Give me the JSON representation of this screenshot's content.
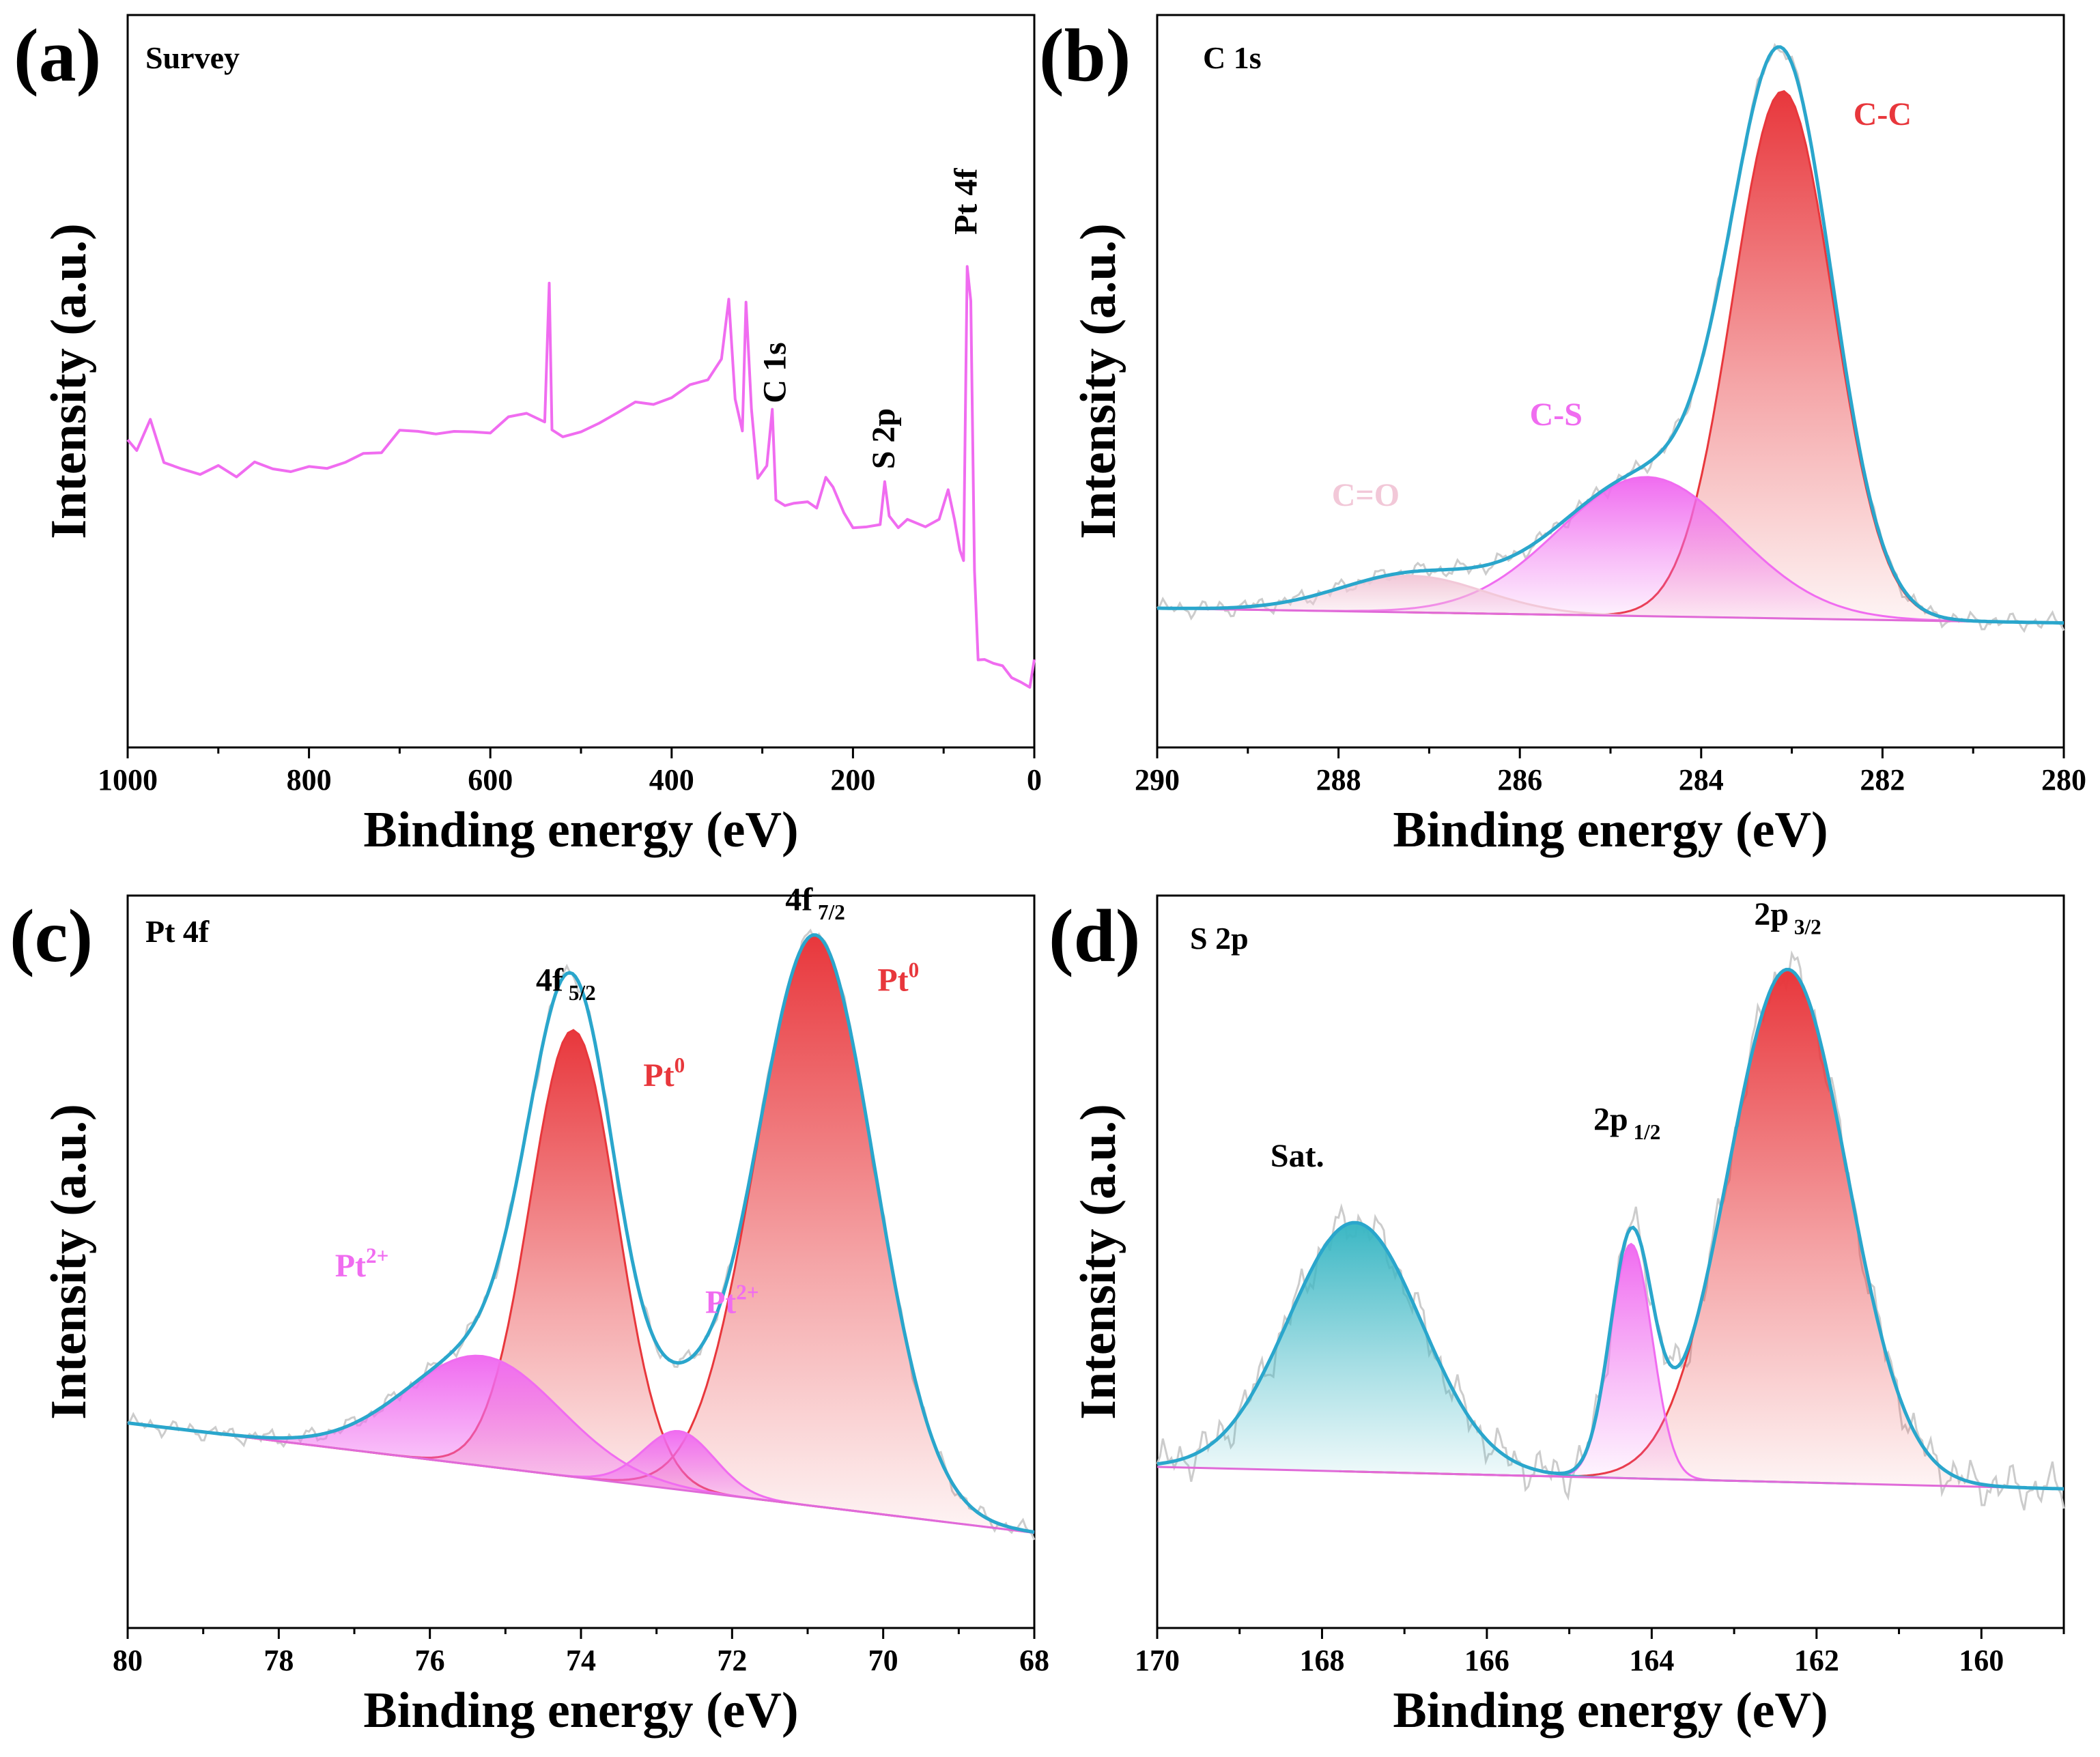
{
  "figure": {
    "xlabel": "Binding energy (eV)",
    "ylabel": "Intensity (a.u.)"
  },
  "colors": {
    "fit": "#2aa6cc",
    "red": "#e8373c",
    "magenta": "#f06cf0",
    "pink": "#f2c8d8",
    "teal": "#3bb7c4",
    "raw": "#cccccc",
    "axis": "#000000"
  },
  "chart_data": [
    {
      "type": "line",
      "panel_label": "(a)",
      "title": "Survey",
      "xlabel": "Binding energy (eV)",
      "ylabel": "Intensity (a.u.)",
      "xlim": [
        1000,
        0
      ],
      "ylim": [
        0,
        100
      ],
      "xticks": [
        "1000",
        "800",
        "600",
        "400",
        "200",
        "0"
      ],
      "tick_values": [
        1000,
        800,
        600,
        400,
        200,
        0
      ],
      "series": [
        {
          "name": "Survey spectrum",
          "color": "#f06cf0",
          "points": [
            [
              1000,
              42
            ],
            [
              990,
              40
            ],
            [
              975,
              43
            ],
            [
              960,
              38
            ],
            [
              940,
              38
            ],
            [
              920,
              37
            ],
            [
              900,
              39
            ],
            [
              880,
              37
            ],
            [
              860,
              38
            ],
            [
              840,
              38
            ],
            [
              820,
              38
            ],
            [
              800,
              39
            ],
            [
              780,
              40
            ],
            [
              760,
              40
            ],
            [
              740,
              40
            ],
            [
              720,
              40
            ],
            [
              700,
              42
            ],
            [
              680,
              42
            ],
            [
              660,
              43
            ],
            [
              640,
              43
            ],
            [
              620,
              43
            ],
            [
              600,
              43
            ],
            [
              580,
              44
            ],
            [
              560,
              45
            ],
            [
              540,
              45
            ],
            [
              535,
              64
            ],
            [
              532,
              45
            ],
            [
              520,
              44
            ],
            [
              500,
              43
            ],
            [
              480,
              44
            ],
            [
              460,
              45
            ],
            [
              440,
              46
            ],
            [
              420,
              47
            ],
            [
              400,
              48
            ],
            [
              380,
              49
            ],
            [
              360,
              50
            ],
            [
              345,
              52
            ],
            [
              337,
              60
            ],
            [
              330,
              48
            ],
            [
              322,
              44
            ],
            [
              318,
              62
            ],
            [
              312,
              48
            ],
            [
              305,
              37
            ],
            [
              295,
              38
            ],
            [
              289,
              46
            ],
            [
              285,
              33
            ],
            [
              275,
              33
            ],
            [
              265,
              34
            ],
            [
              250,
              33
            ],
            [
              240,
              32
            ],
            [
              230,
              36
            ],
            [
              222,
              34
            ],
            [
              210,
              32
            ],
            [
              200,
              31
            ],
            [
              185,
              31
            ],
            [
              170,
              32
            ],
            [
              165,
              37
            ],
            [
              160,
              31
            ],
            [
              150,
              30
            ],
            [
              140,
              31
            ],
            [
              120,
              30
            ],
            [
              105,
              32
            ],
            [
              95,
              35
            ],
            [
              88,
              30
            ],
            [
              82,
              26
            ],
            [
              78,
              24
            ],
            [
              74,
              65
            ],
            [
              70,
              62
            ],
            [
              66,
              25
            ],
            [
              62,
              13
            ],
            [
              55,
              13
            ],
            [
              45,
              11
            ],
            [
              35,
              11
            ],
            [
              25,
              10
            ],
            [
              15,
              9
            ],
            [
              5,
              9
            ],
            [
              0,
              12
            ]
          ]
        }
      ],
      "annotations": [
        {
          "text": "C 1s",
          "x": 285,
          "y": 47
        },
        {
          "text": "S 2p",
          "x": 165,
          "y": 38
        },
        {
          "text": "Pt 4f",
          "x": 74,
          "y": 70
        }
      ]
    },
    {
      "type": "line",
      "panel_label": "(b)",
      "title": "C 1s",
      "xlabel": "Binding energy (eV)",
      "ylabel": "Intensity (a.u.)",
      "xlim": [
        290,
        280
      ],
      "ylim": [
        0,
        100
      ],
      "xticks": [
        "290",
        "288",
        "286",
        "284",
        "282",
        "280"
      ],
      "tick_values": [
        290,
        288,
        286,
        284,
        282,
        280
      ],
      "baseline": [
        [
          290,
          19
        ],
        [
          280,
          17
        ]
      ],
      "components": [
        {
          "name": "C-C",
          "center": 283.1,
          "height": 72,
          "fwhm": 1.3,
          "color": "#e8373c"
        },
        {
          "name": "C-S",
          "center": 284.6,
          "height": 19,
          "fwhm": 2.3,
          "color": "#f06cf0"
        },
        {
          "name": "C=O",
          "center": 287.2,
          "height": 5,
          "fwhm": 1.9,
          "color": "#f2c8d8"
        }
      ],
      "annotations": [
        {
          "text": "C-C",
          "x": 282.0,
          "y": 85
        },
        {
          "text": "C-S",
          "x": 285.6,
          "y": 44
        },
        {
          "text": "C=O",
          "x": 287.7,
          "y": 33
        }
      ]
    },
    {
      "type": "line",
      "panel_label": "(c)",
      "title": "Pt 4f",
      "xlabel": "Binding energy (eV)",
      "ylabel": "Intensity (a.u.)",
      "xlim": [
        80,
        68
      ],
      "ylim": [
        0,
        100
      ],
      "xticks": [
        "80",
        "78",
        "76",
        "74",
        "72",
        "70",
        "68"
      ],
      "tick_values": [
        80,
        78,
        76,
        74,
        72,
        70,
        68
      ],
      "baseline": [
        [
          80,
          28
        ],
        [
          68,
          13
        ]
      ],
      "components": [
        {
          "name": "Pt0 4f7/2",
          "center": 70.9,
          "height": 78,
          "fwhm": 1.85,
          "color": "#e8373c"
        },
        {
          "name": "Pt0 4f5/2",
          "center": 74.1,
          "height": 61,
          "fwhm": 1.35,
          "color": "#e8373c"
        },
        {
          "name": "Pt2+ 4f7/2",
          "center": 72.7,
          "height": 8,
          "fwhm": 1.1,
          "color": "#f06cf0"
        },
        {
          "name": "Pt2+ 4f5/2",
          "center": 75.3,
          "height": 15,
          "fwhm": 2.4,
          "color": "#f06cf0"
        }
      ],
      "annotations": [
        {
          "text": "4f",
          "sub": "7/2",
          "x": 70.9,
          "y": 98
        },
        {
          "text": "4f",
          "sub": "5/2",
          "x": 74.2,
          "y": 87
        },
        {
          "text": "Pt",
          "sup": "0",
          "x": 69.8,
          "y": 87
        },
        {
          "text": "Pt",
          "sup": "0",
          "x": 72.9,
          "y": 74
        },
        {
          "text": "Pt",
          "sup": "2+",
          "x": 76.9,
          "y": 48
        },
        {
          "text": "Pt",
          "sup": "2+",
          "x": 72.0,
          "y": 43
        }
      ]
    },
    {
      "type": "line",
      "panel_label": "(d)",
      "title": "S 2p",
      "xlabel": "Binding energy (eV)",
      "ylabel": "Intensity (a.u.)",
      "xlim": [
        170,
        159
      ],
      "ylim": [
        0,
        100
      ],
      "xticks": [
        "170",
        "168",
        "166",
        "164",
        "162",
        "160"
      ],
      "tick_values": [
        170,
        168,
        166,
        164,
        162,
        160
      ],
      "baseline": [
        [
          170,
          22
        ],
        [
          159,
          19
        ]
      ],
      "components": [
        {
          "name": "2p 3/2",
          "center": 162.35,
          "height": 70,
          "fwhm": 1.7,
          "color": "#e8373c"
        },
        {
          "name": "2p 1/2",
          "center": 164.25,
          "height": 32,
          "fwhm": 0.6,
          "color": "#f06cf0"
        },
        {
          "name": "Sat.",
          "center": 167.6,
          "height": 34,
          "fwhm": 1.9,
          "color": "#3bb7c4"
        }
      ],
      "annotations": [
        {
          "text": "2p",
          "sub": "3/2",
          "x": 162.35,
          "y": 96
        },
        {
          "text": "2p",
          "sub": "1/2",
          "x": 164.3,
          "y": 68
        },
        {
          "text": "Sat.",
          "x": 168.3,
          "y": 63
        }
      ]
    }
  ]
}
